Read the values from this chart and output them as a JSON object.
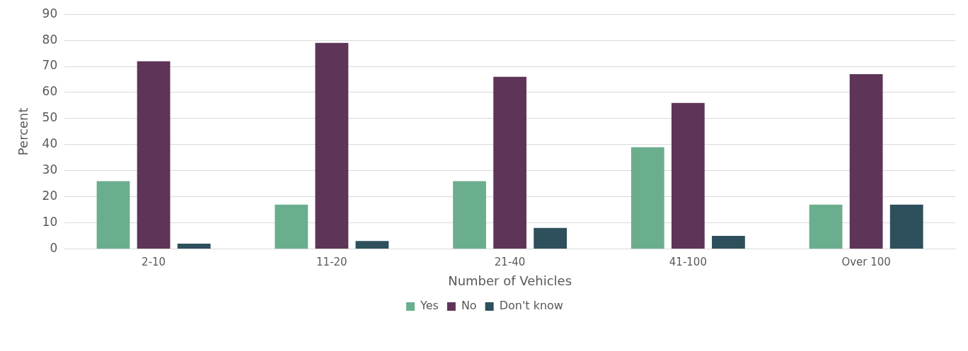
{
  "chart_data": {
    "type": "bar",
    "xlabel": "Number of Vehicles",
    "ylabel": "Percent",
    "categories": [
      "2-10",
      "11-20",
      "21-40",
      "41-100",
      "Over 100"
    ],
    "series": [
      {
        "name": "Yes",
        "color": "#6aae8e",
        "values": [
          26,
          17,
          26,
          39,
          17
        ]
      },
      {
        "name": "No",
        "color": "#5e3558",
        "values": [
          72,
          79,
          66,
          56,
          67
        ]
      },
      {
        "name": "Don't know",
        "color": "#2e4f5c",
        "values": [
          2,
          3,
          8,
          5,
          17
        ]
      }
    ],
    "ylim": [
      0,
      90
    ],
    "yticks": [
      0,
      10,
      20,
      30,
      40,
      50,
      60,
      70,
      80,
      90
    ],
    "grid": "y",
    "legend": "bottom"
  }
}
